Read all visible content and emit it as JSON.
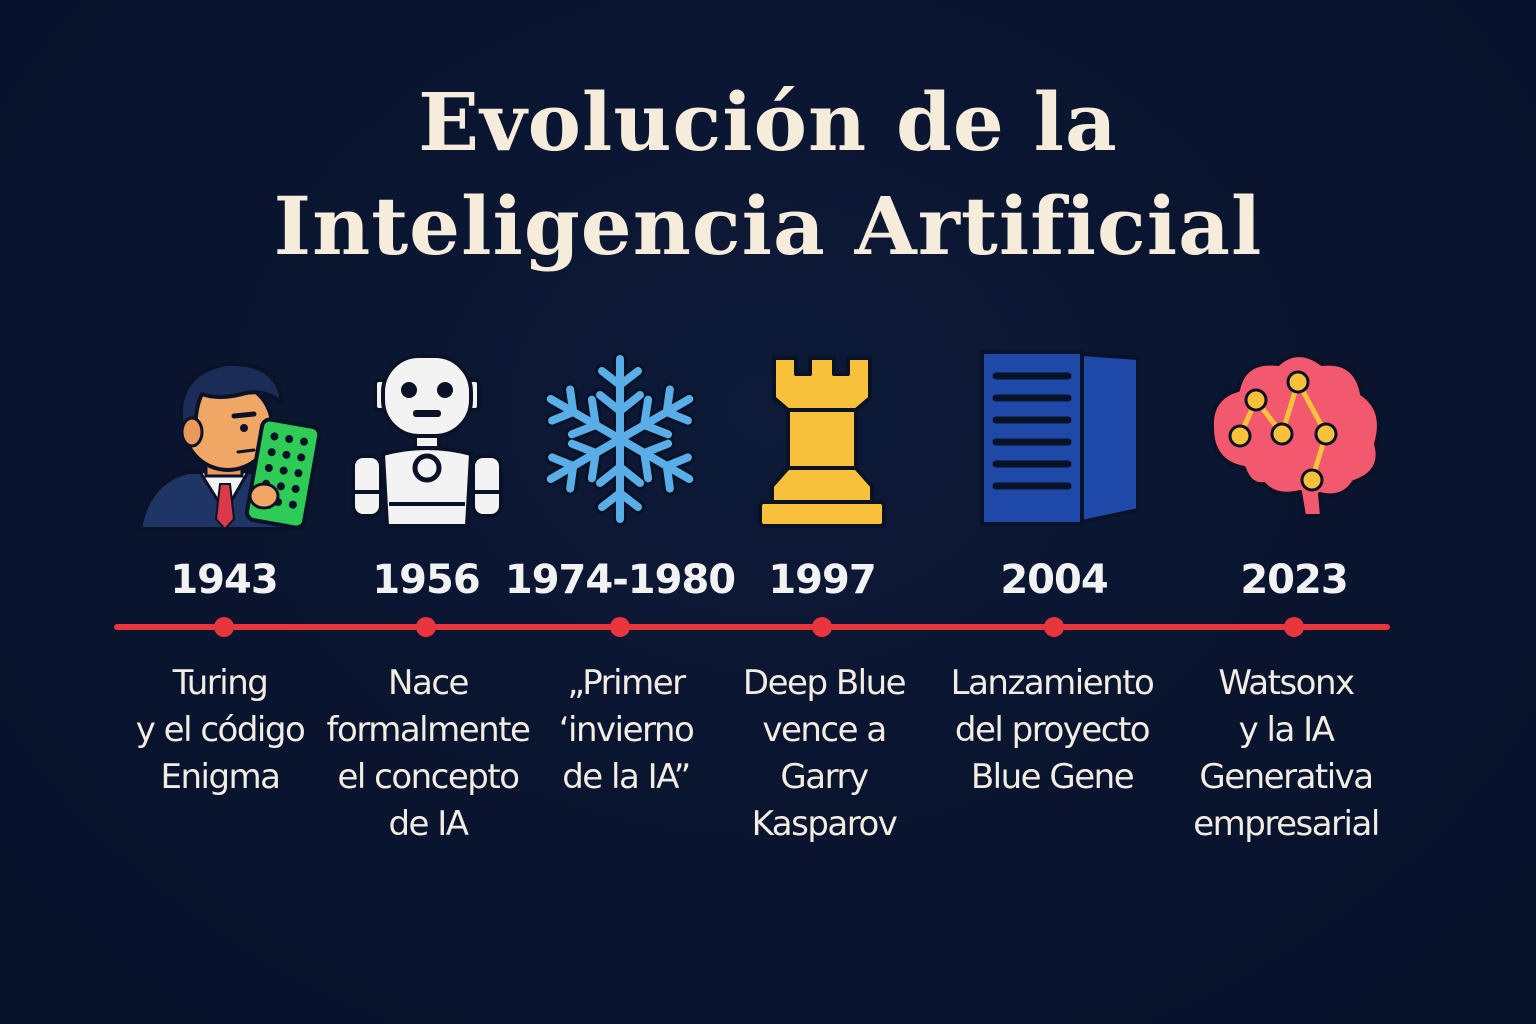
{
  "title": {
    "line1": "Evolución de la",
    "line2": "Inteligencia Artificial"
  },
  "colors": {
    "background": "#0a1530",
    "title": "#f6ecdc",
    "timeline": "#e8363c",
    "text": "#f3ece2"
  },
  "events": [
    {
      "year": "1943",
      "icon": "turing-person-enigma-icon",
      "lines": [
        "Turing",
        "y el código",
        "Enigma"
      ]
    },
    {
      "year": "1956",
      "icon": "robot-icon",
      "lines": [
        "Nace",
        "formalmente",
        "el concepto",
        "de IA"
      ]
    },
    {
      "year": "1974-1980",
      "icon": "snowflake-icon",
      "lines": [
        "„Primer",
        "‘invierno",
        "de la IA”"
      ]
    },
    {
      "year": "1997",
      "icon": "chess-rook-icon",
      "lines": [
        "Deep Blue",
        "vence a",
        "Garry",
        "Kasparov"
      ]
    },
    {
      "year": "2004",
      "icon": "server-icon",
      "lines": [
        "Lanzamiento",
        "del proyecto",
        "Blue Gene"
      ]
    },
    {
      "year": "2023",
      "icon": "brain-network-icon",
      "lines": [
        "Watsonx",
        "y la IA",
        "Generativa",
        "empresarial"
      ]
    }
  ]
}
